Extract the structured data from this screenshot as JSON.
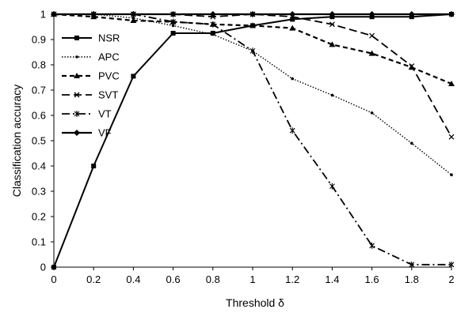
{
  "chart_data": {
    "type": "line",
    "xlabel": "Threshold δ",
    "ylabel": "Classification accuracy",
    "xlim": [
      0,
      2
    ],
    "ylim": [
      0,
      1
    ],
    "xticks": [
      "0",
      "0.2",
      "0.4",
      "0.6",
      "0.8",
      "1",
      "1.2",
      "1.4",
      "1.6",
      "1.8",
      "2"
    ],
    "yticks": [
      "0",
      "0.1",
      "0.2",
      "0.3",
      "0.4",
      "0.5",
      "0.6",
      "0.7",
      "0.8",
      "0.9",
      "1"
    ],
    "grid": false,
    "legend_position": "upper-left",
    "x": [
      0,
      0.2,
      0.4,
      0.6,
      0.8,
      1.0,
      1.2,
      1.4,
      1.6,
      1.8,
      2.0
    ],
    "series": [
      {
        "name": "NSR",
        "dash": "solid",
        "marker": "square",
        "color": "#000000",
        "values": [
          0.0,
          0.4,
          0.755,
          0.925,
          0.925,
          0.955,
          0.98,
          0.99,
          0.99,
          0.99,
          1.0
        ]
      },
      {
        "name": "APC",
        "dash": "dotted",
        "marker": "dot",
        "color": "#000000",
        "values": [
          1.0,
          1.0,
          0.985,
          0.955,
          0.92,
          0.855,
          0.745,
          0.68,
          0.61,
          0.49,
          0.365
        ]
      },
      {
        "name": "PVC",
        "dash": "dashed",
        "marker": "triangle",
        "color": "#000000",
        "values": [
          1.0,
          0.99,
          0.975,
          0.97,
          0.96,
          0.955,
          0.945,
          0.88,
          0.845,
          0.79,
          0.725
        ]
      },
      {
        "name": "SVT",
        "dash": "longdash",
        "marker": "x",
        "color": "#000000",
        "values": [
          1.0,
          1.0,
          1.0,
          1.0,
          0.99,
          1.0,
          0.99,
          0.96,
          0.915,
          0.795,
          0.515
        ]
      },
      {
        "name": "VT",
        "dash": "dashdot",
        "marker": "star",
        "color": "#000000",
        "values": [
          1.0,
          1.0,
          1.0,
          0.97,
          0.96,
          0.855,
          0.54,
          0.32,
          0.085,
          0.01,
          0.01
        ]
      },
      {
        "name": "VF",
        "dash": "solid",
        "marker": "diamond",
        "color": "#000000",
        "values": [
          1.0,
          1.0,
          1.0,
          1.0,
          1.0,
          1.0,
          1.0,
          1.0,
          1.0,
          1.0,
          1.0
        ]
      }
    ]
  }
}
